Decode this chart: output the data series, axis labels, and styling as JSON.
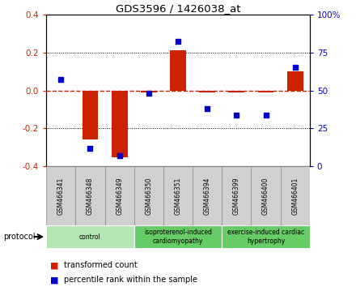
{
  "title": "GDS3596 / 1426038_at",
  "samples": [
    "GSM466341",
    "GSM466348",
    "GSM466349",
    "GSM466350",
    "GSM466351",
    "GSM466394",
    "GSM466399",
    "GSM466400",
    "GSM466401"
  ],
  "transformed_count": [
    0.0,
    -0.26,
    -0.35,
    -0.01,
    0.21,
    -0.01,
    -0.01,
    -0.01,
    0.1
  ],
  "percentile_rank": [
    57,
    12,
    7,
    48,
    82,
    38,
    34,
    34,
    65
  ],
  "bar_color": "#cc2200",
  "dot_color": "#0000cc",
  "left_ylim": [
    -0.4,
    0.4
  ],
  "right_ylim": [
    0,
    100
  ],
  "left_yticks": [
    -0.4,
    -0.2,
    0.0,
    0.2,
    0.4
  ],
  "right_yticks": [
    0,
    25,
    50,
    75,
    100
  ],
  "right_yticklabels": [
    "0",
    "25",
    "50",
    "75",
    "100%"
  ],
  "groups": [
    {
      "label": "control",
      "start": 0,
      "end": 2,
      "color": "#b2e6b2"
    },
    {
      "label": "isoproterenol-induced\ncardiomyopathy",
      "start": 3,
      "end": 5,
      "color": "#66cc66"
    },
    {
      "label": "exercise-induced cardiac\nhypertrophy",
      "start": 6,
      "end": 8,
      "color": "#66cc66"
    }
  ],
  "protocol_label": "protocol",
  "legend_bar_label": "transformed count",
  "legend_dot_label": "percentile rank within the sample",
  "bg_color": "#ffffff",
  "zero_line_color": "#cc2200",
  "tick_label_color_left": "#cc2200",
  "tick_label_color_right": "#0000cc",
  "sample_box_color": "#d0d0d0",
  "sample_box_edge": "#888888"
}
